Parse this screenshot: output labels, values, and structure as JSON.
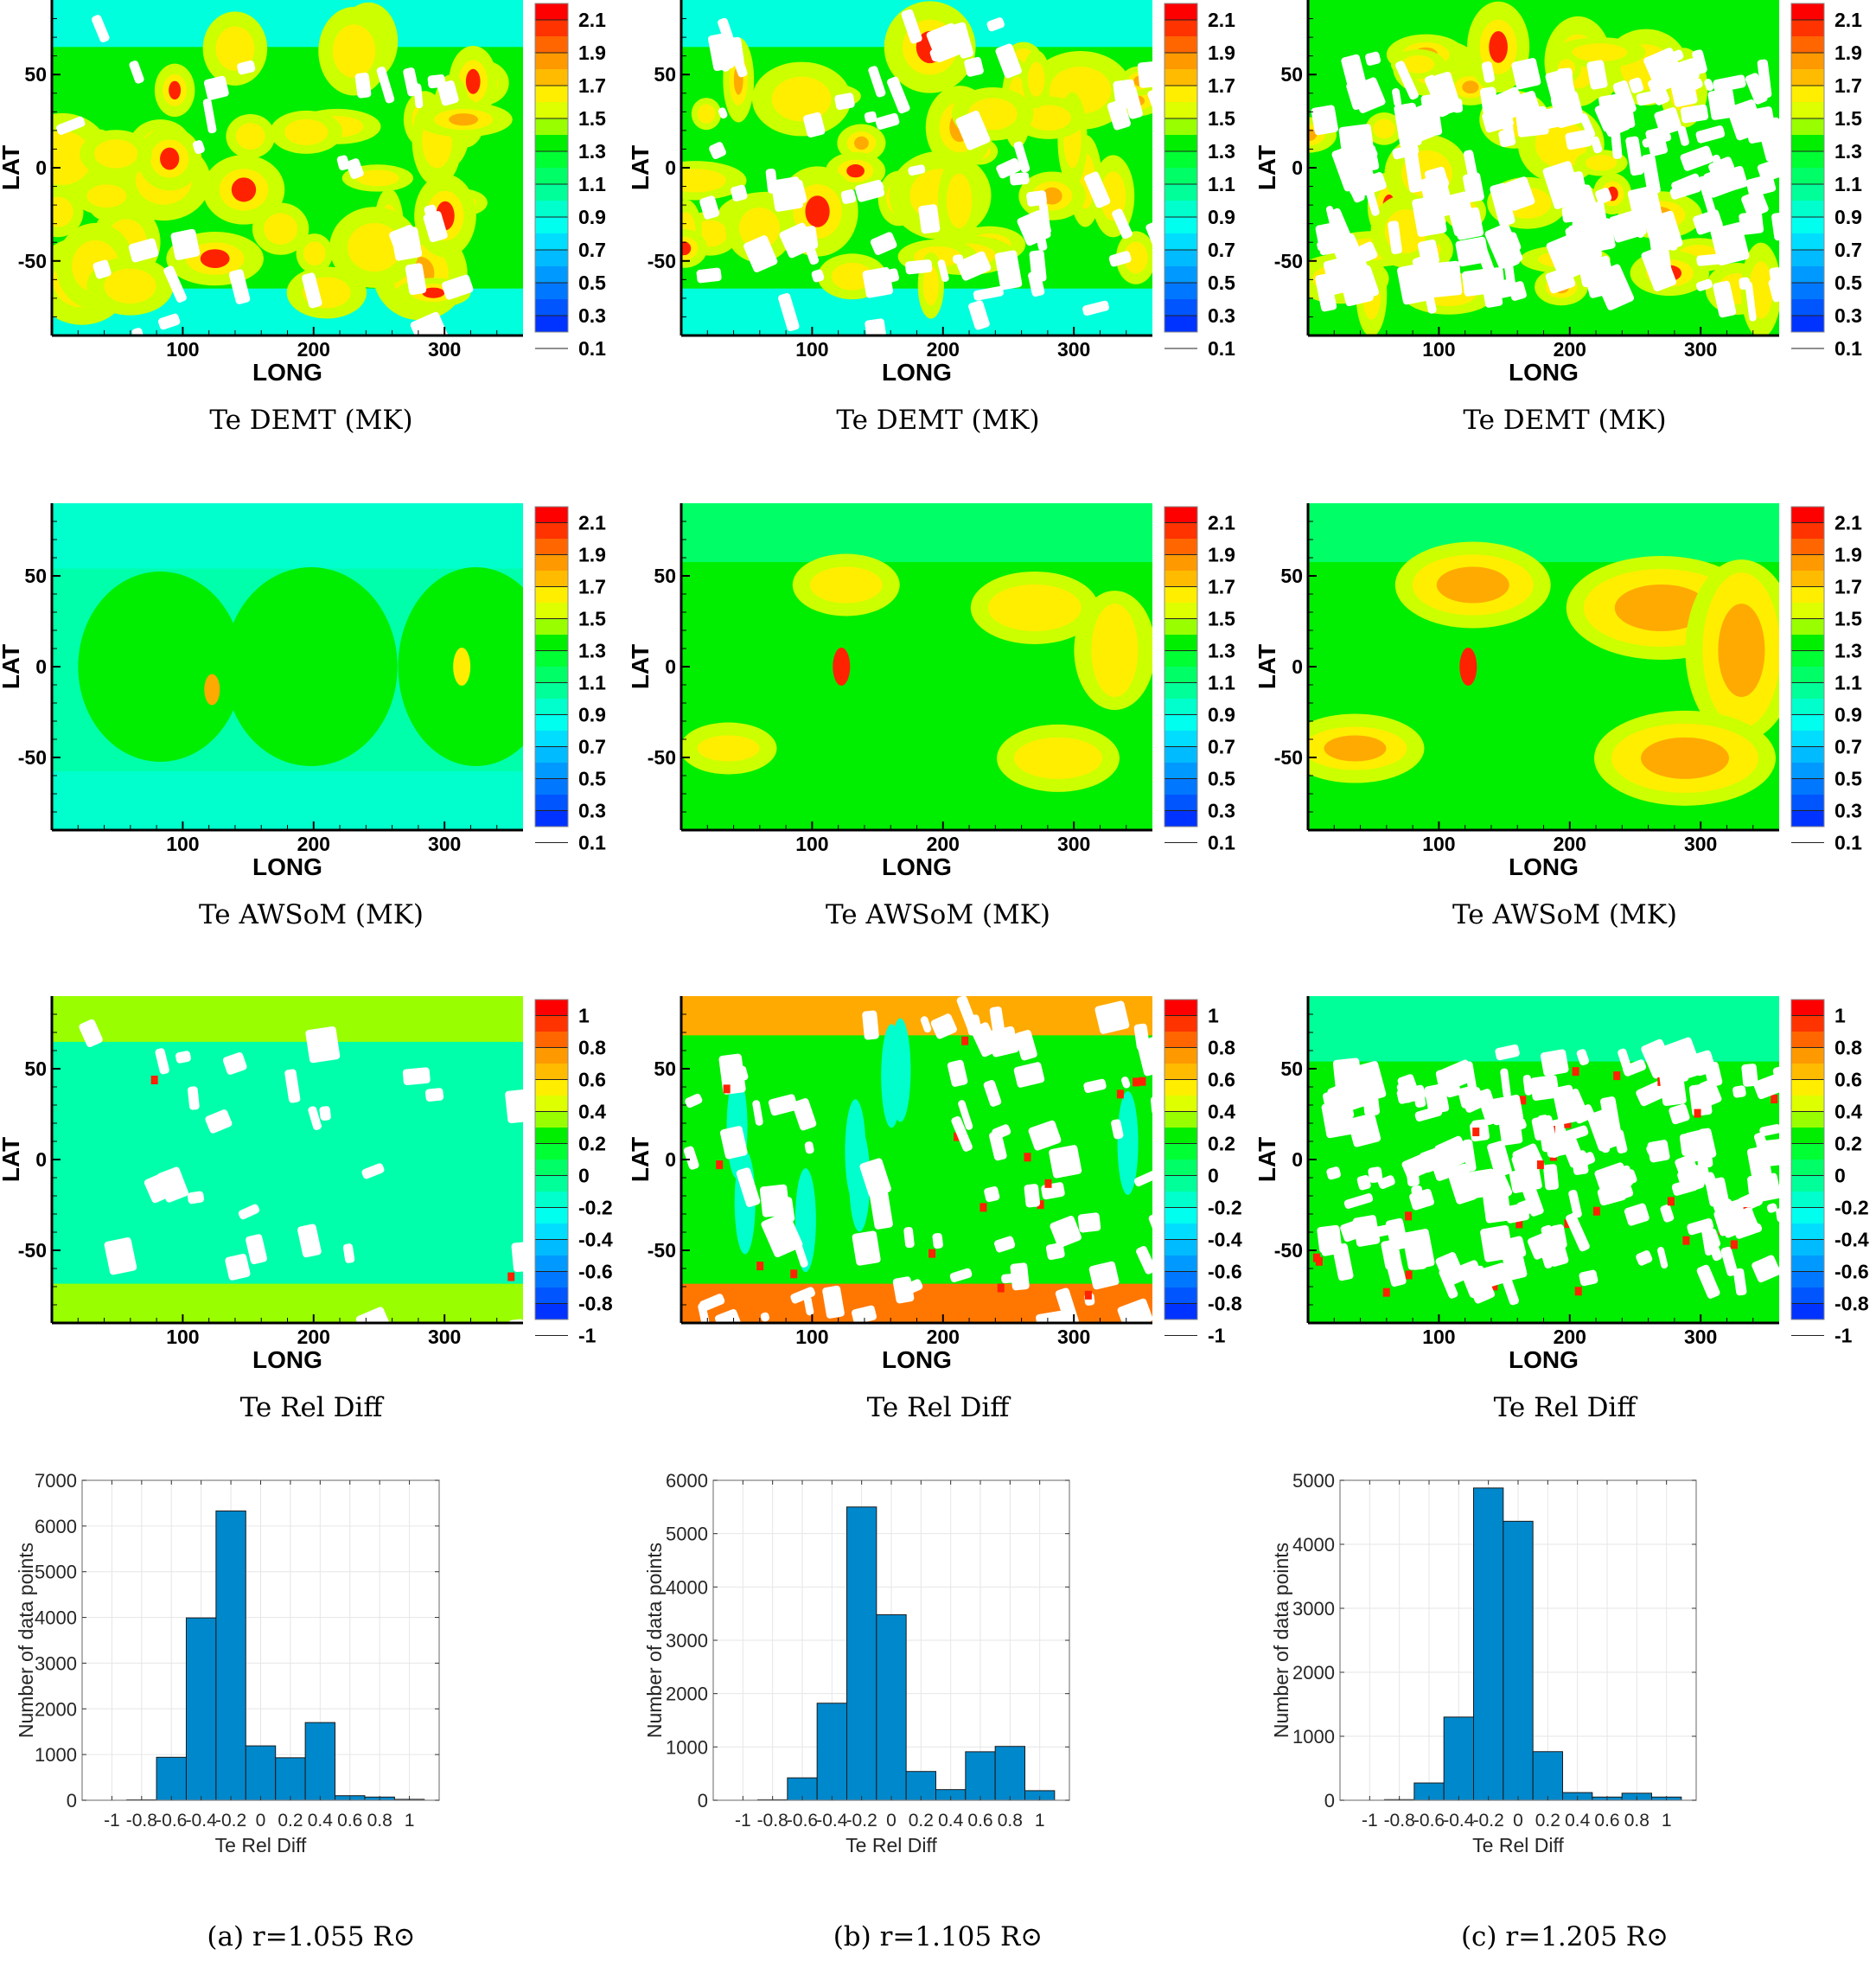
{
  "figure": {
    "columns": [
      {
        "id": "a",
        "caption": "(a) r=1.055 R⊙"
      },
      {
        "id": "b",
        "caption": "(b) r=1.105 R⊙"
      },
      {
        "id": "c",
        "caption": "(c) r=1.205 R⊙"
      }
    ],
    "row_captions": [
      "Te DEMT (MK)",
      "Te AWSoM (MK)",
      "Te Rel Diff"
    ],
    "map_axes": {
      "xlabel": "LONG",
      "ylabel": "LAT",
      "xticks": [
        "100",
        "200",
        "300"
      ],
      "yticks": [
        "50",
        "0",
        "-50"
      ],
      "xlim": [
        0,
        360
      ],
      "ylim": [
        -90,
        90
      ]
    },
    "colorbars": {
      "temperature": {
        "labels": [
          "2.1",
          "1.9",
          "1.7",
          "1.5",
          "1.3",
          "1.1",
          "0.9",
          "0.7",
          "0.5",
          "0.3",
          "0.1"
        ],
        "range": [
          0.1,
          2.2
        ],
        "colors": [
          "#ff0000",
          "#ff3300",
          "#ff6600",
          "#ff9900",
          "#ffbb00",
          "#ffee00",
          "#ddff00",
          "#99ff00",
          "#00ee00",
          "#00ff33",
          "#00ff66",
          "#00ff99",
          "#00ffcc",
          "#00ffee",
          "#00ddff",
          "#00bbff",
          "#0099ff",
          "#0077ff",
          "#0055ff",
          "#0033ff"
        ]
      },
      "reldiff": {
        "labels": [
          "1",
          "0.8",
          "0.6",
          "0.4",
          "0.2",
          "0",
          "-0.2",
          "-0.4",
          "-0.6",
          "-0.8",
          "-1"
        ],
        "range": [
          -1,
          1
        ],
        "colors": [
          "#ff0000",
          "#ff3300",
          "#ff6600",
          "#ff9900",
          "#ffbb00",
          "#ffee00",
          "#ddff00",
          "#99ff00",
          "#00ee00",
          "#00ff33",
          "#00ff66",
          "#00ff99",
          "#00ffcc",
          "#00ffee",
          "#00ddff",
          "#00bbff",
          "#0099ff",
          "#0077ff",
          "#0055ff",
          "#0033ff"
        ]
      }
    },
    "map_colors": {
      "white_gap": "#ffffff",
      "green": "#00ee00",
      "yellowgreen": "#ccff00",
      "yellow": "#ffee00",
      "orange": "#ffaa00",
      "red": "#ff2200",
      "cyan": "#00ffdd",
      "teal": "#00ff99"
    }
  },
  "chart_data": [
    {
      "type": "bar",
      "title": "(a) r=1.055 R⊙",
      "xlabel": "Te Rel Diff",
      "ylabel": "Number of data points",
      "categories": [
        -0.8,
        -0.6,
        -0.4,
        -0.2,
        0,
        0.2,
        0.4,
        0.6,
        0.8,
        1.0
      ],
      "bin_width": 0.2,
      "values": [
        10,
        940,
        3990,
        6330,
        1190,
        930,
        1700,
        100,
        70,
        20
      ],
      "xlim": [
        -1.2,
        1.2
      ],
      "ylim": [
        0,
        7000
      ],
      "xticks": [
        "-1",
        "-0.8",
        "-0.6",
        "-0.4",
        "-0.2",
        "0",
        "0.2",
        "0.4",
        "0.6",
        "0.8",
        "1"
      ],
      "yticks": [
        "0",
        "1000",
        "2000",
        "3000",
        "4000",
        "5000",
        "6000",
        "7000"
      ],
      "grid": true,
      "bar_color": "#0088cc"
    },
    {
      "type": "bar",
      "title": "(b) r=1.105 R⊙",
      "xlabel": "Te Rel Diff",
      "ylabel": "Number of data points",
      "categories": [
        -0.8,
        -0.6,
        -0.4,
        -0.2,
        0,
        0.2,
        0.4,
        0.6,
        0.8,
        1.0
      ],
      "bin_width": 0.2,
      "values": [
        10,
        420,
        1820,
        5500,
        3480,
        540,
        200,
        910,
        1010,
        180
      ],
      "xlim": [
        -1.2,
        1.2
      ],
      "ylim": [
        0,
        6000
      ],
      "xticks": [
        "-1",
        "-0.8",
        "-0.6",
        "-0.4",
        "-0.2",
        "0",
        "0.2",
        "0.4",
        "0.6",
        "0.8",
        "1"
      ],
      "yticks": [
        "0",
        "1000",
        "2000",
        "3000",
        "4000",
        "5000",
        "6000"
      ],
      "grid": true,
      "bar_color": "#0088cc"
    },
    {
      "type": "bar",
      "title": "(c) r=1.205 R⊙",
      "xlabel": "Te Rel Diff",
      "ylabel": "Number of data points",
      "categories": [
        -0.8,
        -0.6,
        -0.4,
        -0.2,
        0,
        0.2,
        0.4,
        0.6,
        0.8,
        1.0
      ],
      "bin_width": 0.2,
      "values": [
        10,
        270,
        1300,
        4880,
        4360,
        760,
        120,
        50,
        110,
        50
      ],
      "xlim": [
        -1.2,
        1.2
      ],
      "ylim": [
        0,
        5000
      ],
      "xticks": [
        "-1",
        "-0.8",
        "-0.6",
        "-0.4",
        "-0.2",
        "0",
        "0.2",
        "0.4",
        "0.6",
        "0.8",
        "1"
      ],
      "yticks": [
        "0",
        "1000",
        "2000",
        "3000",
        "4000",
        "5000"
      ],
      "grid": true,
      "bar_color": "#0088cc"
    }
  ]
}
